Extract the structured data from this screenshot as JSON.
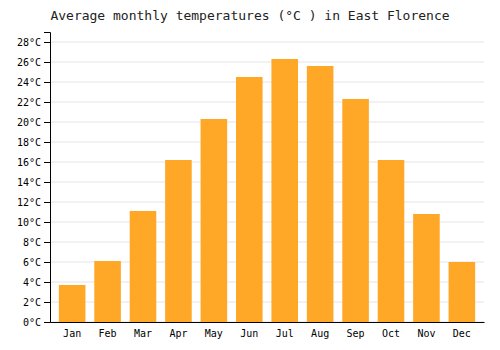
{
  "chart_data": {
    "type": "bar",
    "title": "Average monthly temperatures (°C ) in East Florence",
    "categories": [
      "Jan",
      "Feb",
      "Mar",
      "Apr",
      "May",
      "Jun",
      "Jul",
      "Aug",
      "Sep",
      "Oct",
      "Nov",
      "Dec"
    ],
    "values": [
      3.7,
      6.1,
      11.1,
      16.2,
      20.3,
      24.5,
      26.3,
      25.6,
      22.3,
      16.2,
      10.8,
      6.0
    ],
    "color": "#FFA726",
    "ylim": [
      0,
      29
    ],
    "yticks": [
      {
        "value": 0,
        "label": "0°C"
      },
      {
        "value": 2,
        "label": "2°C"
      },
      {
        "value": 4,
        "label": "4°C"
      },
      {
        "value": 6,
        "label": "6°C"
      },
      {
        "value": 8,
        "label": "8°C"
      },
      {
        "value": 10,
        "label": "10°C"
      },
      {
        "value": 12,
        "label": "12°C"
      },
      {
        "value": 14,
        "label": "14°C"
      },
      {
        "value": 16,
        "label": "16°C"
      },
      {
        "value": 18,
        "label": "18°C"
      },
      {
        "value": 20,
        "label": "20°C"
      },
      {
        "value": 22,
        "label": "22°C"
      },
      {
        "value": 24,
        "label": "24°C"
      },
      {
        "value": 26,
        "label": "26°C"
      },
      {
        "value": 28,
        "label": "28°C"
      }
    ],
    "grid": true
  }
}
